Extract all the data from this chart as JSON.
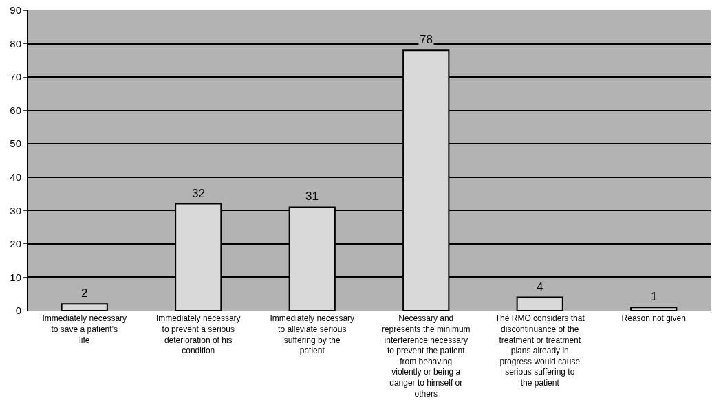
{
  "chart_data": {
    "type": "bar",
    "categories": [
      "Immediately necessary to save a patient’s life",
      "Immediately necessary to prevent a serious deterioration of his condition",
      "Immediately necessary to alleviate serious suffering by the patient",
      "Necessary and represents the minimum interference necessary to prevent the patient from behaving violently or being a danger to himself or others",
      "The RMO considers that discontinuance of the treatment or treatment plans already in progress would cause serious suffering to the patient",
      "Reason not given"
    ],
    "values": [
      2,
      32,
      31,
      78,
      4,
      1
    ],
    "color": "#d9d9d9",
    "ylim": [
      0,
      90
    ],
    "yticks": [
      0,
      10,
      20,
      30,
      40,
      50,
      60,
      70,
      80,
      90
    ],
    "grid": "y",
    "data_labels": true,
    "legend": false
  }
}
